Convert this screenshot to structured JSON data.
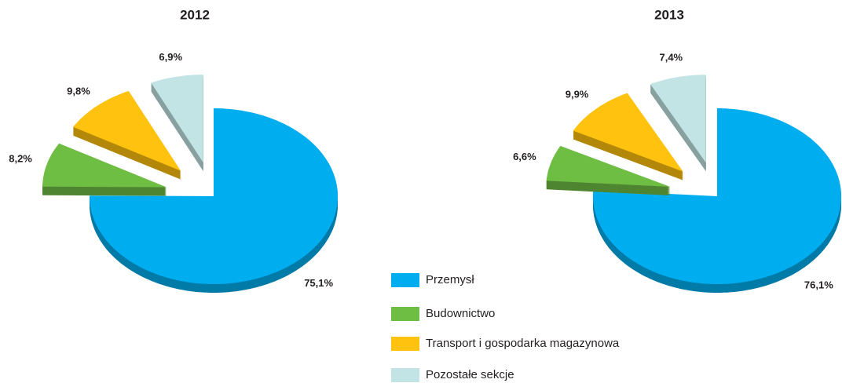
{
  "chart_data": [
    {
      "type": "pie",
      "title": "2012",
      "categories": [
        "Przemysł",
        "Budownictwo",
        "Transport i gospodarka magazynowa",
        "Pozostałe sekcje"
      ],
      "values": [
        75.1,
        8.2,
        9.8,
        6.9
      ],
      "value_labels": [
        "75,1%",
        "8,2%",
        "9,8%",
        "6,9%"
      ],
      "colors": [
        "#00aeef",
        "#6fbe44",
        "#ffc20e",
        "#c2e4e4"
      ]
    },
    {
      "type": "pie",
      "title": "2013",
      "values": [
        76.1,
        6.6,
        9.9,
        7.4
      ],
      "value_labels": [
        "76,1%",
        "6,6%",
        "9,9%",
        "7,4%"
      ],
      "colors": [
        "#00aeef",
        "#6fbe44",
        "#ffc20e",
        "#c2e4e4"
      ]
    }
  ]
}
